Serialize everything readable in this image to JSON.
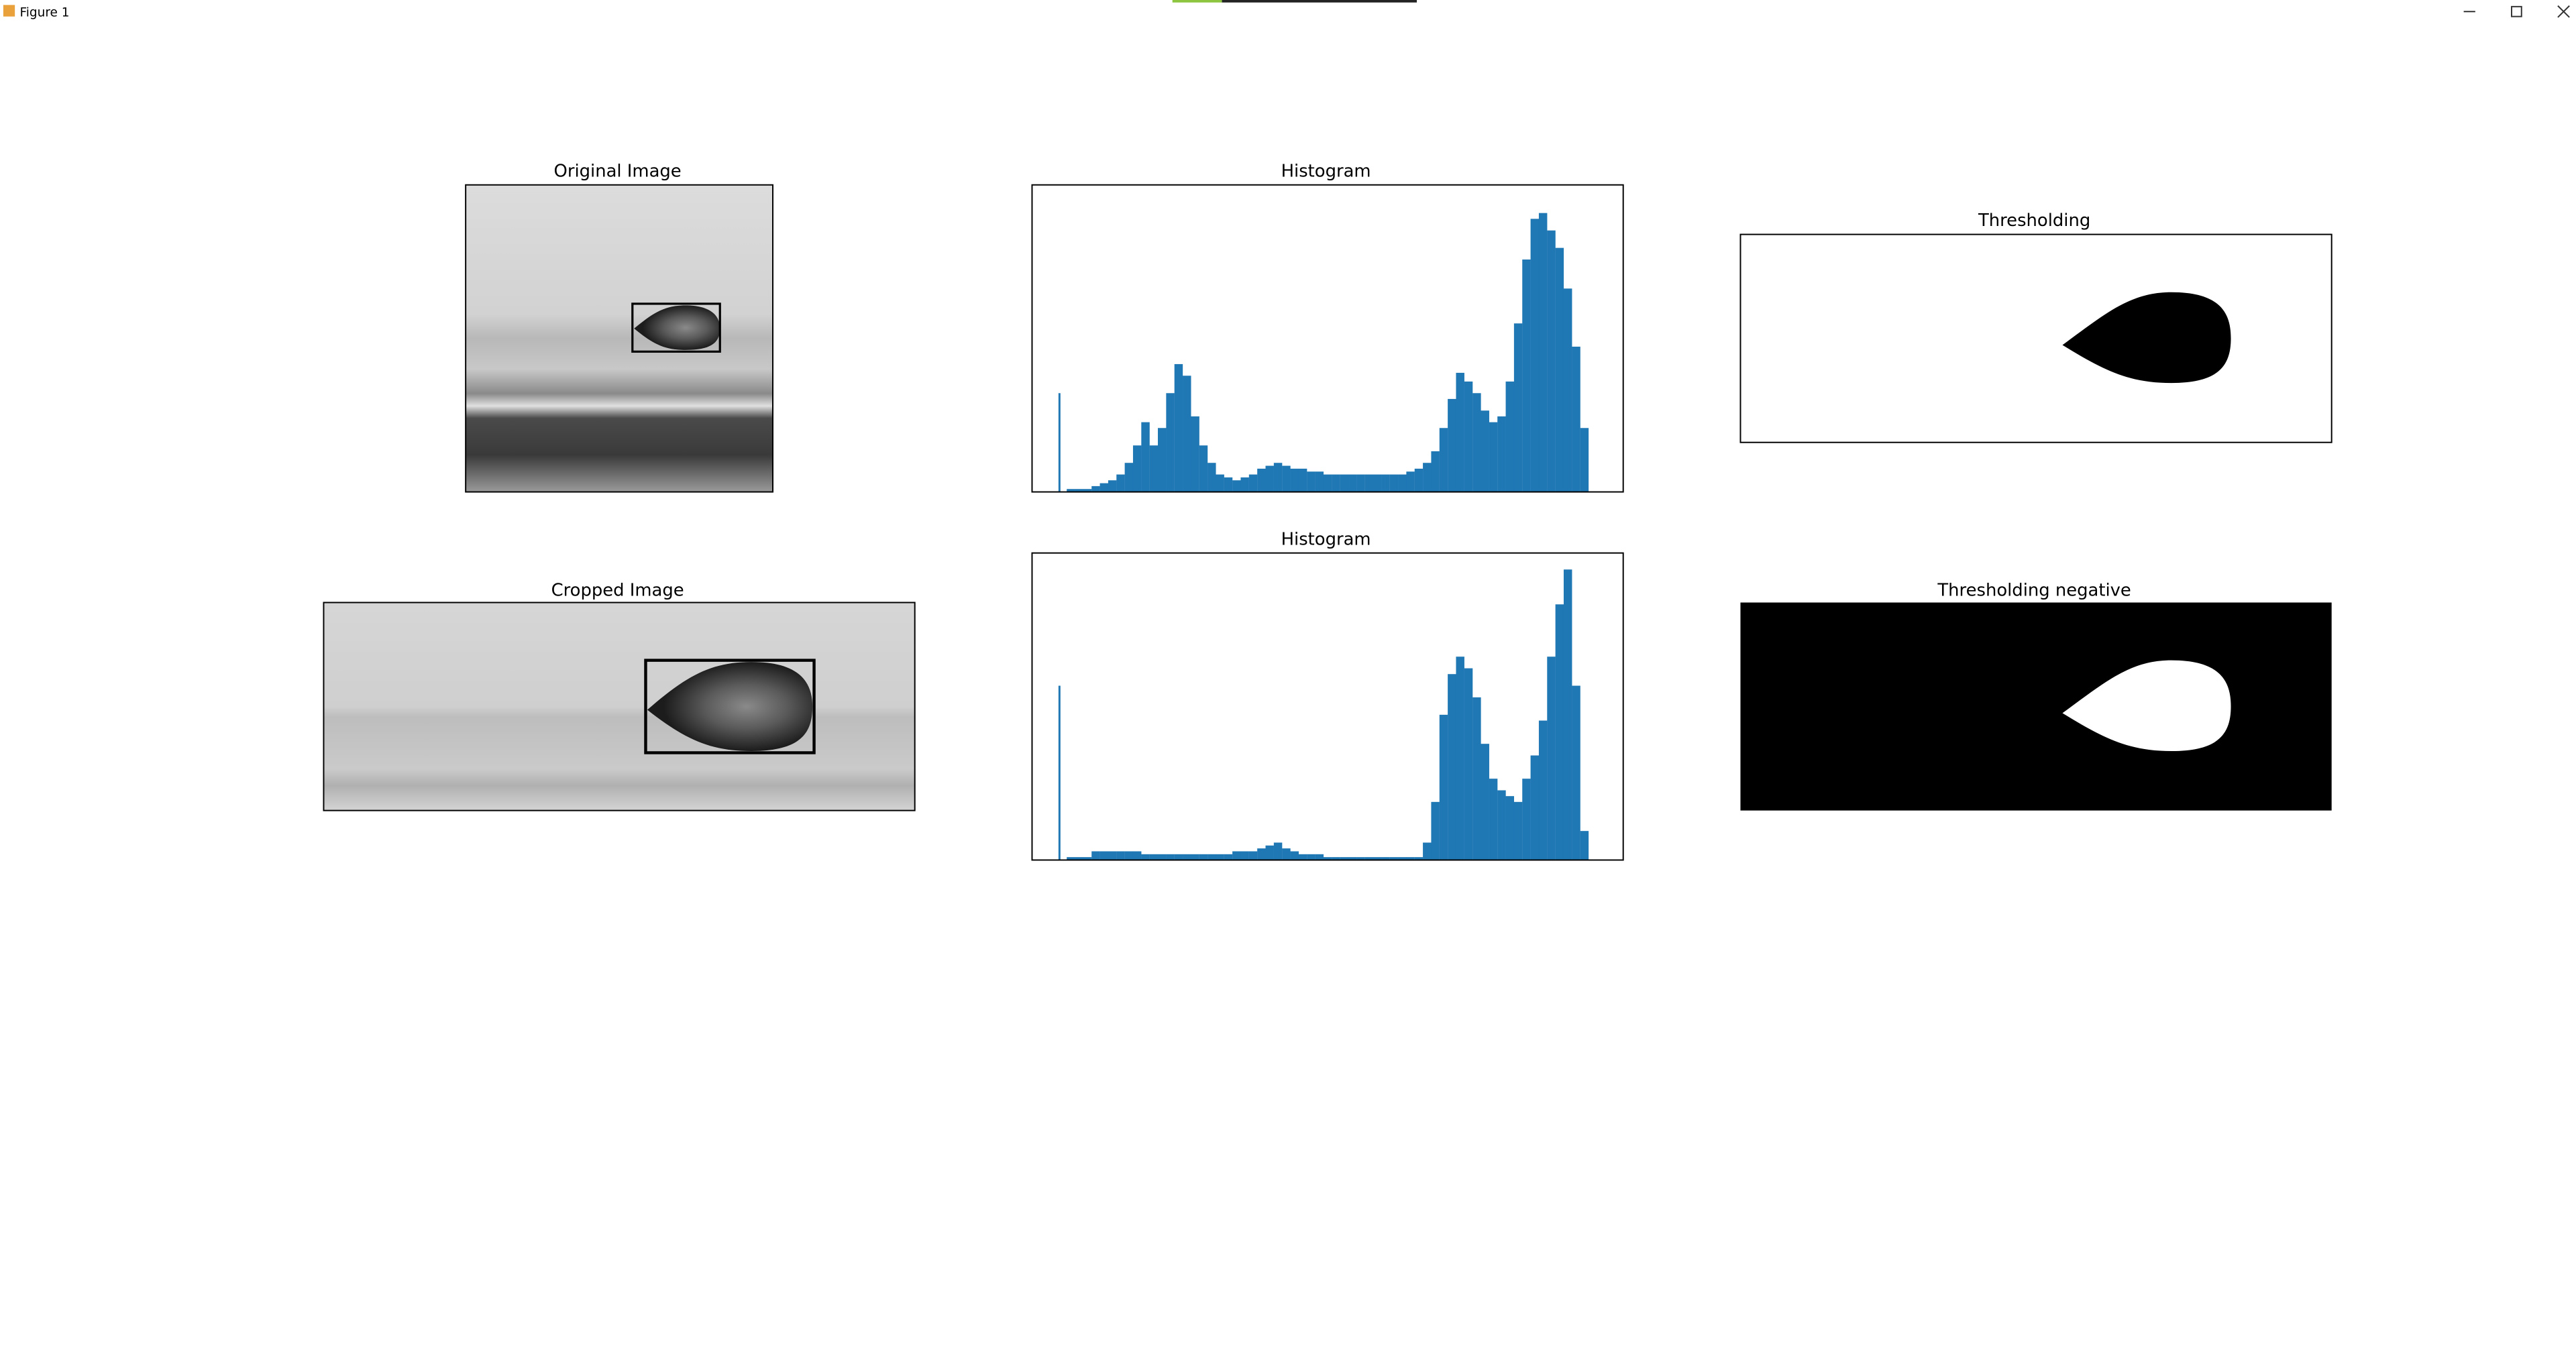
{
  "window": {
    "title": "Figure 1"
  },
  "panels": [
    {
      "title": "Original Image"
    },
    {
      "title": "Histogram",
      "counts": [
        34,
        1,
        1,
        1,
        2,
        3,
        4,
        6,
        10,
        16,
        24,
        16,
        22,
        34,
        44,
        40,
        26,
        16,
        10,
        6,
        5,
        4,
        5,
        6,
        8,
        9,
        10,
        9,
        8,
        8,
        7,
        7,
        6,
        6,
        6,
        6,
        6,
        6,
        6,
        6,
        6,
        6,
        7,
        8,
        10,
        14,
        22,
        32,
        41,
        38,
        34,
        28,
        24,
        26,
        38,
        58,
        80,
        94,
        96,
        90,
        84,
        70,
        50,
        22
      ]
    },
    {
      "title": "Thresholding"
    },
    {
      "title": "Cropped Image"
    },
    {
      "title": "Histogram",
      "counts": [
        60,
        1,
        1,
        1,
        3,
        3,
        3,
        3,
        3,
        3,
        2,
        2,
        2,
        2,
        2,
        2,
        2,
        2,
        2,
        2,
        2,
        3,
        3,
        3,
        4,
        5,
        6,
        4,
        3,
        2,
        2,
        2,
        1,
        1,
        1,
        1,
        1,
        1,
        1,
        1,
        1,
        1,
        1,
        1,
        6,
        20,
        50,
        64,
        70,
        66,
        56,
        40,
        28,
        24,
        22,
        20,
        28,
        36,
        48,
        70,
        88,
        100,
        60,
        10
      ]
    },
    {
      "title": "Thresholding negative"
    }
  ]
}
